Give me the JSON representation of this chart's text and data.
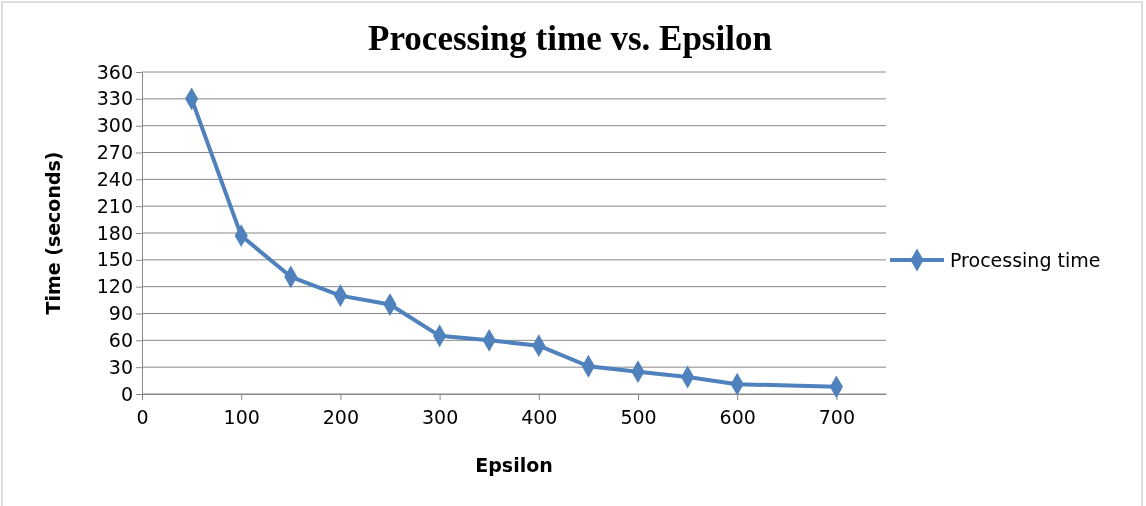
{
  "chart_data": {
    "type": "line",
    "title": "Processing time vs. Epsilon",
    "xlabel": "Epsilon",
    "ylabel": "Time (seconds)",
    "x": [
      50,
      100,
      150,
      200,
      250,
      300,
      350,
      400,
      450,
      500,
      550,
      600,
      700
    ],
    "series": [
      {
        "name": "Processing time",
        "color": "#4f81bd",
        "values": [
          330,
          177,
          131,
          110,
          100,
          65,
          60,
          54,
          31,
          25,
          19,
          11,
          8
        ]
      }
    ],
    "xlim": [
      0,
      750
    ],
    "xticks": [
      0,
      100,
      200,
      300,
      400,
      500,
      600,
      700
    ],
    "ylim": [
      0,
      360
    ],
    "yticks": [
      0,
      30,
      60,
      90,
      120,
      150,
      180,
      210,
      240,
      270,
      300,
      330,
      360
    ],
    "grid": "y",
    "legend": "right",
    "marker": "diamond",
    "line_style": "solid"
  }
}
